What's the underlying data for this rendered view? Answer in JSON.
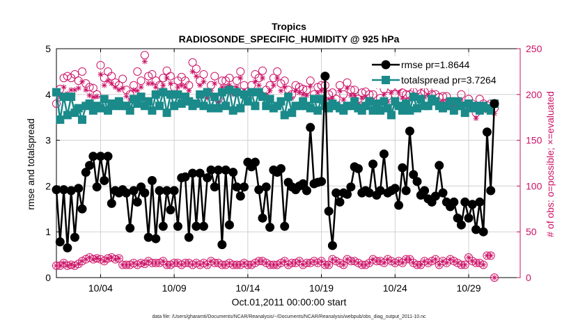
{
  "title": "Tropics",
  "subtitle": "RADIOSONDE_SPECIFIC_HUMIDITY @ 925 hPa",
  "footnote": "data file: /Users/gharamti/Documents/NCAR/Reanalysis/~/Documents/NCAR/Reanalysis/webpub/obs_diag_output_2011-10.nc",
  "colors": {
    "rmse": "#000000",
    "spread": "#1a8a8a",
    "obs": "#cc1166",
    "grid": "#d0d0d0"
  },
  "chart_data": {
    "type": "line",
    "title": "Tropics",
    "subtitle": "RADIOSONDE_SPECIFIC_HUMIDITY @ 925 hPa",
    "xlabel": "Oct.01,2011 00:00:00 start",
    "ylabel": "rmse and totalspread",
    "y2label": "# of obs: o=possible; ×=evaluated",
    "xlim": [
      1,
      32.5
    ],
    "ylim": [
      0,
      5
    ],
    "y2lim": [
      0,
      250
    ],
    "xticks": [
      4,
      9,
      14,
      19,
      24,
      29
    ],
    "xticklabels": [
      "10/04",
      "10/09",
      "10/14",
      "10/19",
      "10/24",
      "10/29"
    ],
    "yticks": [
      0,
      1,
      2,
      3,
      4,
      5
    ],
    "yticklabels": [
      "0",
      "1",
      "2",
      "3",
      "4",
      "5"
    ],
    "y2ticks": [
      0,
      50,
      100,
      150,
      200,
      250
    ],
    "y2ticklabels": [
      "0",
      "50",
      "100",
      "150",
      "200",
      "250"
    ],
    "grid": true,
    "legend_position": "top-right",
    "x_start": 1,
    "x_step": 0.25,
    "series": [
      {
        "name": "rmse pr=1.8644",
        "axis": "left",
        "values": [
          1.92,
          0.78,
          1.92,
          0.65,
          1.9,
          0.88,
          1.95,
          1.5,
          2.3,
          2.45,
          2.65,
          1.98,
          2.65,
          2.12,
          2.65,
          1.62,
          1.9,
          1.85,
          1.92,
          1.85,
          1.08,
          1.9,
          1.65,
          1.98,
          1.85,
          0.88,
          2.12,
          0.85,
          1.9,
          1.12,
          1.9,
          1.48,
          1.9,
          1.12,
          2.18,
          2.2,
          0.88,
          2.28,
          1.12,
          2.28,
          1.12,
          2.18,
          2.35,
          1.98,
          2.35,
          0.72,
          2.35,
          1.15,
          2.3,
          1.98,
          1.78,
          1.98,
          2.52,
          2.42,
          2.52,
          1.92,
          1.3,
          1.98,
          1.1,
          2.35,
          2.3,
          2.38,
          1.12,
          2.08,
          1.98,
          1.92,
          2.0,
          2.05,
          1.9,
          3.28,
          2.05,
          2.08,
          2.1,
          4.4,
          1.45,
          0.7,
          1.85,
          1.65,
          1.85,
          1.82,
          1.98,
          2.42,
          2.38,
          1.85,
          1.9,
          1.85,
          2.48,
          1.8,
          1.9,
          2.7,
          1.85,
          1.9,
          1.95,
          1.58,
          2.4,
          1.9,
          3.2,
          2.25,
          2.1,
          1.8,
          1.9,
          1.72,
          1.65,
          1.78,
          2.45,
          1.85,
          1.65,
          1.55,
          1.65,
          1.3,
          1.15,
          1.65,
          1.3,
          1.6,
          1.05,
          1.65,
          1.0,
          3.18,
          1.9,
          3.8
        ]
      },
      {
        "name": "totalspread pr=3.7264",
        "axis": "left",
        "values": [
          4.05,
          3.45,
          3.95,
          3.55,
          3.95,
          3.6,
          3.7,
          3.45,
          3.75,
          3.8,
          3.65,
          3.75,
          3.7,
          3.9,
          3.65,
          3.8,
          3.75,
          3.85,
          3.75,
          3.75,
          3.65,
          3.9,
          3.8,
          3.95,
          3.75,
          3.85,
          3.65,
          4.0,
          3.75,
          4.05,
          3.6,
          4.0,
          3.75,
          4.0,
          3.8,
          3.95,
          3.85,
          3.75,
          3.8,
          4.0,
          3.75,
          4.05,
          3.7,
          3.95,
          3.7,
          4.05,
          3.75,
          4.1,
          3.65,
          4.05,
          3.7,
          4.0,
          3.85,
          4.05,
          3.75,
          4.05,
          3.95,
          3.75,
          3.9,
          3.7,
          3.75,
          3.85,
          3.55,
          3.95,
          3.6,
          3.75,
          3.75,
          3.85,
          3.75,
          3.7,
          3.9,
          3.65,
          3.9,
          3.75,
          3.7,
          3.8,
          3.75,
          3.7,
          3.65,
          3.75,
          3.75,
          3.85,
          3.7,
          3.65,
          3.75,
          3.85,
          3.65,
          3.8,
          3.65,
          3.85,
          3.7,
          3.55,
          3.85,
          3.75,
          3.65,
          3.8,
          3.65,
          3.95,
          3.7,
          3.9,
          3.75,
          3.75,
          3.9,
          3.85,
          3.75,
          3.7,
          3.75,
          3.85,
          3.65,
          3.85,
          3.75,
          3.6,
          3.8,
          3.7,
          3.75,
          3.65,
          3.75,
          3.7,
          3.65,
          3.8
        ]
      },
      {
        "name": "obs possible",
        "axis": "right",
        "marker": "o",
        "values": [
          190,
          206,
          218,
          220,
          218,
          222,
          215,
          225,
          212,
          208,
          207,
          200,
          232,
          218,
          225,
          220,
          213,
          210,
          217,
          205,
          200,
          210,
          225,
          215,
          243,
          220,
          222,
          215,
          210,
          218,
          226,
          220,
          208,
          215,
          219,
          215,
          210,
          235,
          228,
          215,
          222,
          200,
          210,
          220,
          195,
          215,
          215,
          218,
          205,
          215,
          225,
          210,
          200,
          210,
          222,
          218,
          226,
          205,
          210,
          218,
          225,
          212,
          215,
          205,
          200,
          210,
          208,
          206,
          205,
          215,
          200,
          208,
          210,
          210,
          200,
          202,
          195,
          210,
          200,
          213,
          205,
          205,
          195,
          202,
          203,
          200,
          200,
          215,
          196,
          206,
          198,
          208,
          200,
          208,
          202,
          200,
          200,
          203,
          205,
          201,
          203,
          205,
          200,
          200,
          197,
          198,
          198,
          190,
          190,
          190,
          200,
          188,
          195,
          190,
          180,
          195,
          190,
          188,
          190,
          185
        ]
      },
      {
        "name": "obs evaluated",
        "axis": "right",
        "marker": "x",
        "values": [
          200,
          197,
          208,
          201,
          205,
          205,
          207,
          214,
          205,
          199,
          197,
          198,
          222,
          210,
          215,
          212,
          208,
          205,
          207,
          198,
          194,
          205,
          204,
          208,
          236,
          212,
          212,
          208,
          203,
          210,
          218,
          212,
          202,
          208,
          210,
          208,
          204,
          225,
          220,
          210,
          214,
          196,
          204,
          212,
          192,
          208,
          208,
          210,
          200,
          208,
          218,
          204,
          196,
          204,
          214,
          210,
          218,
          200,
          204,
          210,
          218,
          204,
          208,
          200,
          196,
          204,
          202,
          200,
          199,
          209,
          194,
          202,
          204,
          204,
          195,
          196,
          190,
          204,
          194,
          207,
          199,
          199,
          190,
          196,
          197,
          194,
          194,
          209,
          190,
          200,
          192,
          202,
          194,
          202,
          196,
          194,
          194,
          197,
          199,
          195,
          197,
          199,
          194,
          194,
          191,
          192,
          192,
          185,
          185,
          185,
          194,
          182,
          189,
          184,
          174,
          189,
          184,
          182,
          184,
          179
        ]
      },
      {
        "name": "obs possible (rmse)",
        "axis": "right",
        "marker": "o",
        "values": [
          13,
          13,
          16,
          13,
          14,
          13,
          15,
          18,
          20,
          22,
          20,
          21,
          20,
          18,
          21,
          22,
          20,
          21,
          14,
          14,
          14,
          16,
          14,
          16,
          15,
          18,
          16,
          16,
          16,
          18,
          14,
          14,
          16,
          16,
          14,
          16,
          16,
          14,
          16,
          14,
          16,
          14,
          18,
          16,
          16,
          14,
          14,
          16,
          14,
          14,
          14,
          16,
          14,
          14,
          16,
          18,
          18,
          16,
          14,
          14,
          14,
          16,
          18,
          14,
          16,
          16,
          18,
          14,
          16,
          16,
          18,
          16,
          18,
          14,
          14,
          20,
          18,
          16,
          14,
          20,
          18,
          18,
          16,
          14,
          14,
          16,
          20,
          18,
          18,
          16,
          20,
          18,
          16,
          18,
          16,
          20,
          20,
          16,
          14,
          14,
          18,
          16,
          18,
          20,
          14,
          18,
          16,
          20,
          18,
          16,
          14,
          14,
          22,
          18,
          16,
          16,
          14,
          24,
          24,
          0
        ]
      },
      {
        "name": "obs evaluated (rmse)",
        "axis": "right",
        "marker": "x",
        "values": [
          13,
          13,
          16,
          13,
          14,
          13,
          15,
          18,
          20,
          22,
          20,
          21,
          20,
          18,
          21,
          22,
          20,
          21,
          14,
          14,
          14,
          16,
          14,
          16,
          15,
          18,
          16,
          16,
          16,
          18,
          14,
          14,
          16,
          16,
          14,
          16,
          16,
          14,
          16,
          14,
          16,
          14,
          18,
          16,
          16,
          14,
          14,
          16,
          14,
          14,
          14,
          16,
          14,
          14,
          16,
          18,
          18,
          16,
          14,
          14,
          14,
          16,
          18,
          14,
          16,
          16,
          18,
          14,
          16,
          16,
          18,
          16,
          18,
          14,
          14,
          20,
          18,
          16,
          14,
          20,
          18,
          18,
          16,
          14,
          14,
          16,
          20,
          18,
          18,
          16,
          20,
          18,
          16,
          18,
          16,
          20,
          20,
          16,
          14,
          14,
          18,
          16,
          18,
          20,
          14,
          18,
          16,
          20,
          18,
          16,
          14,
          14,
          22,
          18,
          16,
          16,
          14,
          24,
          24,
          0
        ]
      }
    ]
  }
}
